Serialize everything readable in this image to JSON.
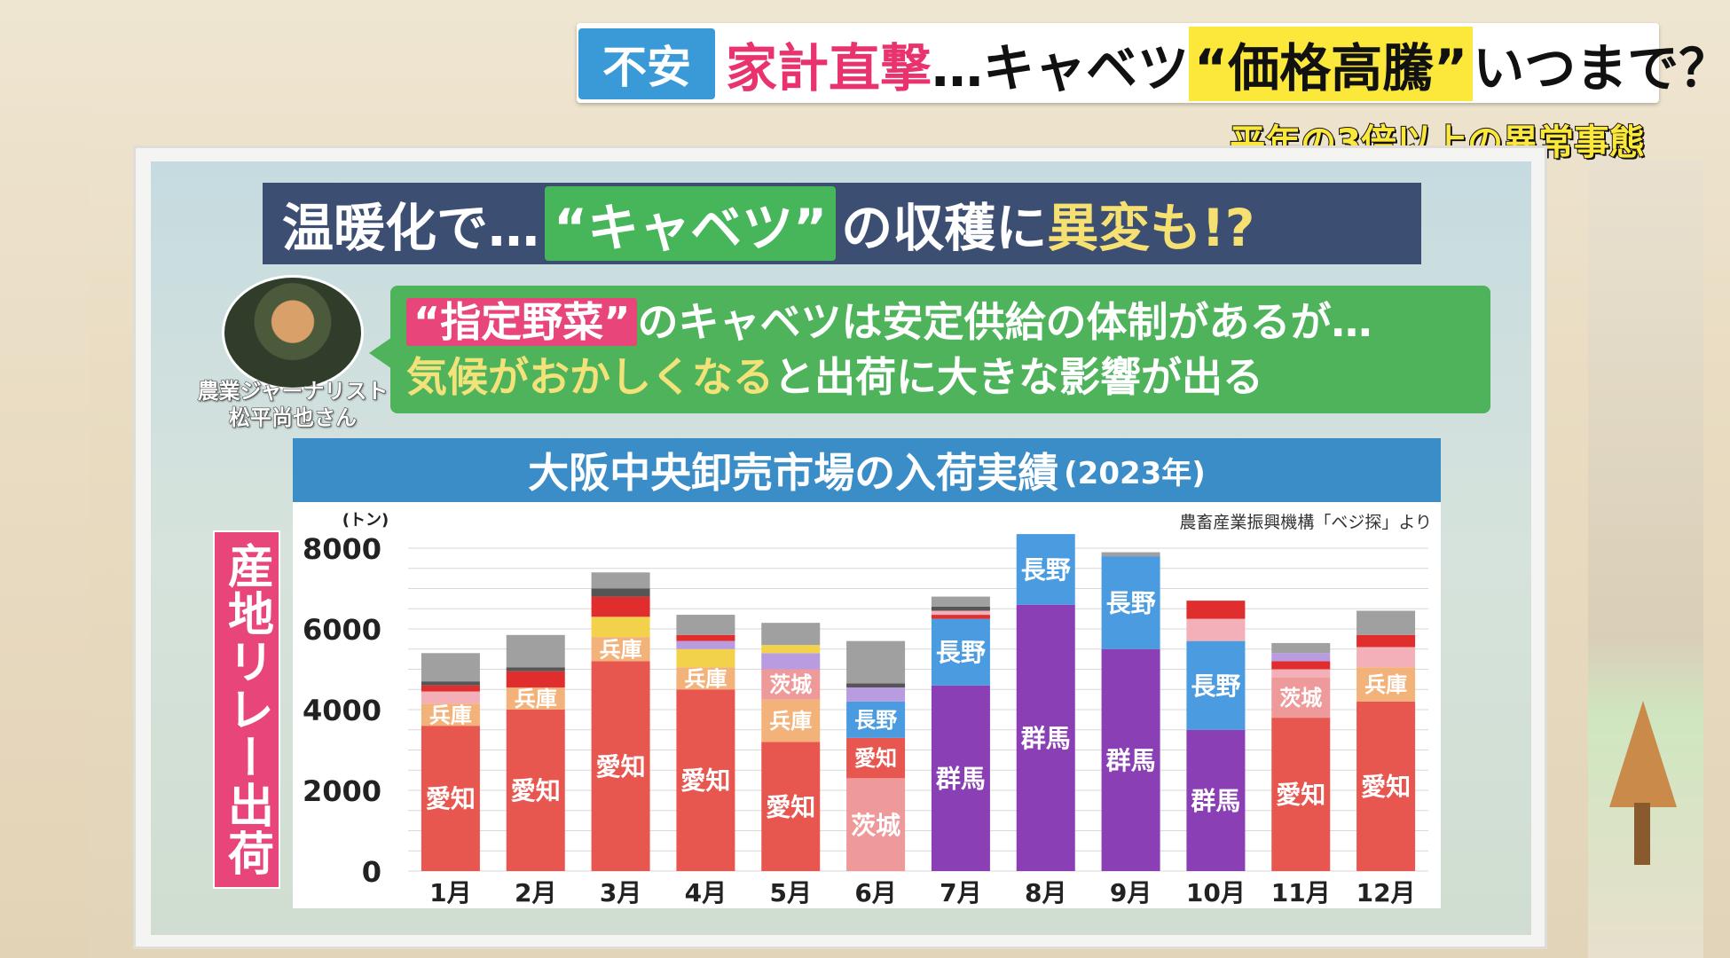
{
  "telop": {
    "badge": "不安",
    "headline_part1": "家計直撃",
    "headline_part2": "…キャベツ",
    "headline_highlight": "“価格高騰”",
    "headline_part3": "いつまで？",
    "subtitle": "平年の3倍以上の異常事態"
  },
  "board": {
    "title_part1": "温暖化で…",
    "title_highlight": "“キャベツ”",
    "title_part2": "の収穫に",
    "title_highlight2": "異変も!?",
    "person_caption_line1": "農業ジャーナリスト",
    "person_caption_line2": "松平尚也さん",
    "speech_line1_highlight": "“指定野菜”",
    "speech_line1_rest": "のキャベツは安定供給の体制があるが…",
    "speech_line2_highlight": "気候がおかしくなる",
    "speech_line2_rest": "と出荷に大きな影響が出る",
    "relay_label": "産地リレー出荷"
  },
  "chart_data": {
    "type": "bar",
    "stacked": true,
    "title": "大阪中央卸売市場の入荷実績",
    "title_year": "(2023年)",
    "source": "農畜産業振興機構「ベジ探」より",
    "ylabel": "(トン)",
    "ylim": [
      0,
      8000
    ],
    "yticks": [
      0,
      2000,
      4000,
      6000,
      8000
    ],
    "categories": [
      "1月",
      "2月",
      "3月",
      "4月",
      "5月",
      "6月",
      "7月",
      "8月",
      "9月",
      "10月",
      "11月",
      "12月"
    ],
    "colors": {
      "愛知": "#e8574f",
      "茨城": "#ef9a9a",
      "群馬": "#8a3fb4",
      "長野": "#4a9be0",
      "兵庫": "#f3b27a",
      "other_red": "#e02e2e",
      "other_pink": "#f4b0b8",
      "other_lavender": "#b99be0",
      "other_yellow": "#f2d24a",
      "other_dark": "#555555",
      "other_gray": "#a0a0a0"
    },
    "segments": [
      [
        {
          "label": "愛知",
          "value": 3600
        },
        {
          "label": "兵庫",
          "value": 550
        },
        {
          "label": "",
          "value": 300,
          "color": "other_pink"
        },
        {
          "label": "",
          "value": 150,
          "color": "other_red"
        },
        {
          "label": "",
          "value": 100,
          "color": "other_dark"
        },
        {
          "label": "",
          "value": 700,
          "color": "other_gray"
        }
      ],
      [
        {
          "label": "愛知",
          "value": 4000
        },
        {
          "label": "兵庫",
          "value": 550
        },
        {
          "label": "",
          "value": 400,
          "color": "other_red"
        },
        {
          "label": "",
          "value": 100,
          "color": "other_dark"
        },
        {
          "label": "",
          "value": 800,
          "color": "other_gray"
        }
      ],
      [
        {
          "label": "愛知",
          "value": 5200
        },
        {
          "label": "兵庫",
          "value": 600
        },
        {
          "label": "",
          "value": 500,
          "color": "other_yellow"
        },
        {
          "label": "",
          "value": 500,
          "color": "other_red"
        },
        {
          "label": "",
          "value": 200,
          "color": "other_dark"
        },
        {
          "label": "",
          "value": 400,
          "color": "other_gray"
        }
      ],
      [
        {
          "label": "愛知",
          "value": 4500
        },
        {
          "label": "兵庫",
          "value": 550
        },
        {
          "label": "",
          "value": 450,
          "color": "other_yellow"
        },
        {
          "label": "",
          "value": 200,
          "color": "other_lavender"
        },
        {
          "label": "",
          "value": 150,
          "color": "other_red"
        },
        {
          "label": "",
          "value": 500,
          "color": "other_gray"
        }
      ],
      [
        {
          "label": "愛知",
          "value": 3200
        },
        {
          "label": "兵庫",
          "value": 1050
        },
        {
          "label": "茨城",
          "value": 750
        },
        {
          "label": "",
          "value": 400,
          "color": "other_lavender"
        },
        {
          "label": "",
          "value": 200,
          "color": "other_yellow"
        },
        {
          "label": "",
          "value": 550,
          "color": "other_gray"
        }
      ],
      [
        {
          "label": "茨城",
          "value": 2300
        },
        {
          "label": "愛知",
          "value": 1000
        },
        {
          "label": "長野",
          "value": 900
        },
        {
          "label": "",
          "value": 350,
          "color": "other_lavender"
        },
        {
          "label": "",
          "value": 100,
          "color": "other_dark"
        },
        {
          "label": "",
          "value": 1050,
          "color": "other_gray"
        }
      ],
      [
        {
          "label": "群馬",
          "value": 4600
        },
        {
          "label": "長野",
          "value": 1650
        },
        {
          "label": "",
          "value": 100,
          "color": "other_red"
        },
        {
          "label": "",
          "value": 100,
          "color": "other_pink"
        },
        {
          "label": "",
          "value": 100,
          "color": "other_dark"
        },
        {
          "label": "",
          "value": 250,
          "color": "other_gray"
        }
      ],
      [
        {
          "label": "群馬",
          "value": 6600
        },
        {
          "label": "長野",
          "value": 1750
        }
      ],
      [
        {
          "label": "群馬",
          "value": 5500
        },
        {
          "label": "長野",
          "value": 2300
        },
        {
          "label": "",
          "value": 100,
          "color": "other_gray"
        }
      ],
      [
        {
          "label": "群馬",
          "value": 3500
        },
        {
          "label": "長野",
          "value": 2200
        },
        {
          "label": "",
          "value": 550,
          "color": "other_pink"
        },
        {
          "label": "",
          "value": 450,
          "color": "other_red"
        }
      ],
      [
        {
          "label": "愛知",
          "value": 3800
        },
        {
          "label": "茨城",
          "value": 1000
        },
        {
          "label": "",
          "value": 200,
          "color": "other_pink"
        },
        {
          "label": "",
          "value": 200,
          "color": "other_red"
        },
        {
          "label": "",
          "value": 200,
          "color": "other_lavender"
        },
        {
          "label": "",
          "value": 250,
          "color": "other_gray"
        }
      ],
      [
        {
          "label": "愛知",
          "value": 4200
        },
        {
          "label": "兵庫",
          "value": 850
        },
        {
          "label": "",
          "value": 500,
          "color": "other_pink"
        },
        {
          "label": "",
          "value": 300,
          "color": "other_red"
        },
        {
          "label": "",
          "value": 600,
          "color": "other_gray"
        }
      ]
    ]
  }
}
